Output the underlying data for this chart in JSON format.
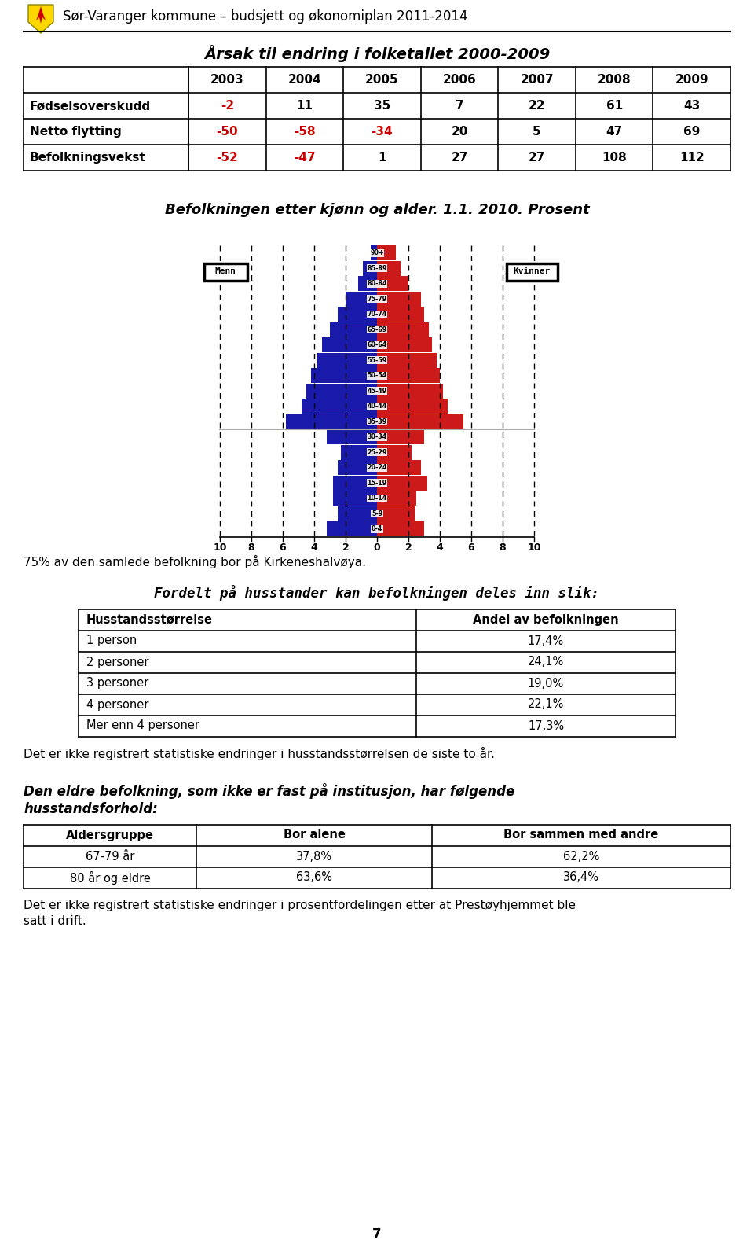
{
  "header_text": "Sør-Varanger kommune – budsjett og økonomiplan 2011-2014",
  "title1": "Årsak til endring i folketallet 2000-2009",
  "table_headers": [
    "",
    "2003",
    "2004",
    "2005",
    "2006",
    "2007",
    "2008",
    "2009"
  ],
  "table_rows": [
    {
      "label": "Fødselsoverskudd",
      "values": [
        -2,
        11,
        35,
        7,
        22,
        61,
        43
      ]
    },
    {
      "label": "Netto flytting",
      "values": [
        -50,
        -58,
        -34,
        20,
        5,
        47,
        69
      ]
    },
    {
      "label": "Befolkningsvekst",
      "values": [
        -52,
        -47,
        1,
        27,
        27,
        108,
        112
      ]
    }
  ],
  "pyramid_title": "Befolkningen etter kjønn og alder. 1.1. 2010. Prosent",
  "age_groups": [
    "0-4",
    "5-9",
    "10-14",
    "15-19",
    "20-24",
    "25-29",
    "30-34",
    "35-39",
    "40-44",
    "45-49",
    "50-54",
    "55-59",
    "60-64",
    "65-69",
    "70-74",
    "75-79",
    "80-84",
    "85-89",
    "90+"
  ],
  "men_values": [
    3.2,
    2.5,
    2.8,
    2.8,
    2.5,
    2.3,
    3.2,
    5.8,
    4.8,
    4.5,
    4.2,
    3.8,
    3.5,
    3.0,
    2.5,
    2.0,
    1.2,
    0.9,
    0.4
  ],
  "women_values": [
    3.0,
    2.4,
    2.5,
    3.2,
    2.8,
    2.2,
    3.0,
    5.5,
    4.5,
    4.2,
    4.0,
    3.8,
    3.5,
    3.3,
    3.0,
    2.8,
    2.0,
    1.5,
    1.2
  ],
  "men_color": "#1a1aaa",
  "women_color": "#cc1a1a",
  "kirke_text": "75% av den samlede befolkning bor på Kirkeneshalvøya.",
  "husstand_title": "Fordelt på husstander kan befolkningen deles inn slik:",
  "husstand_headers": [
    "Husstandsstørrelse",
    "Andel av befolkningen"
  ],
  "husstand_rows": [
    [
      "1 person",
      "17,4%"
    ],
    [
      "2 personer",
      "24,1%"
    ],
    [
      "3 personer",
      "19,0%"
    ],
    [
      "4 personer",
      "22,1%"
    ],
    [
      "Mer enn 4 personer",
      "17,3%"
    ]
  ],
  "husstand_text": "Det er ikke registrert statistiske endringer i husstandsstørrelsen de siste to år.",
  "eldre_title_bold": "Den eldre befolkning, som ikke er fast på institusjon, har følgende\nhusstandsforhold",
  "eldre_title_normal": ":",
  "eldre_headers": [
    "Aldersgruppe",
    "Bor alene",
    "Bor sammen med andre"
  ],
  "eldre_rows": [
    [
      "67-79 år",
      "37,8%",
      "62,2%"
    ],
    [
      "80 år og eldre",
      "63,6%",
      "36,4%"
    ]
  ],
  "eldre_text": "Det er ikke registrert statistiske endringer i prosentfordelingen etter at Prestøyhjemmet ble\nsatt i drift.",
  "page_number": "7",
  "bg_color": "#ffffff"
}
